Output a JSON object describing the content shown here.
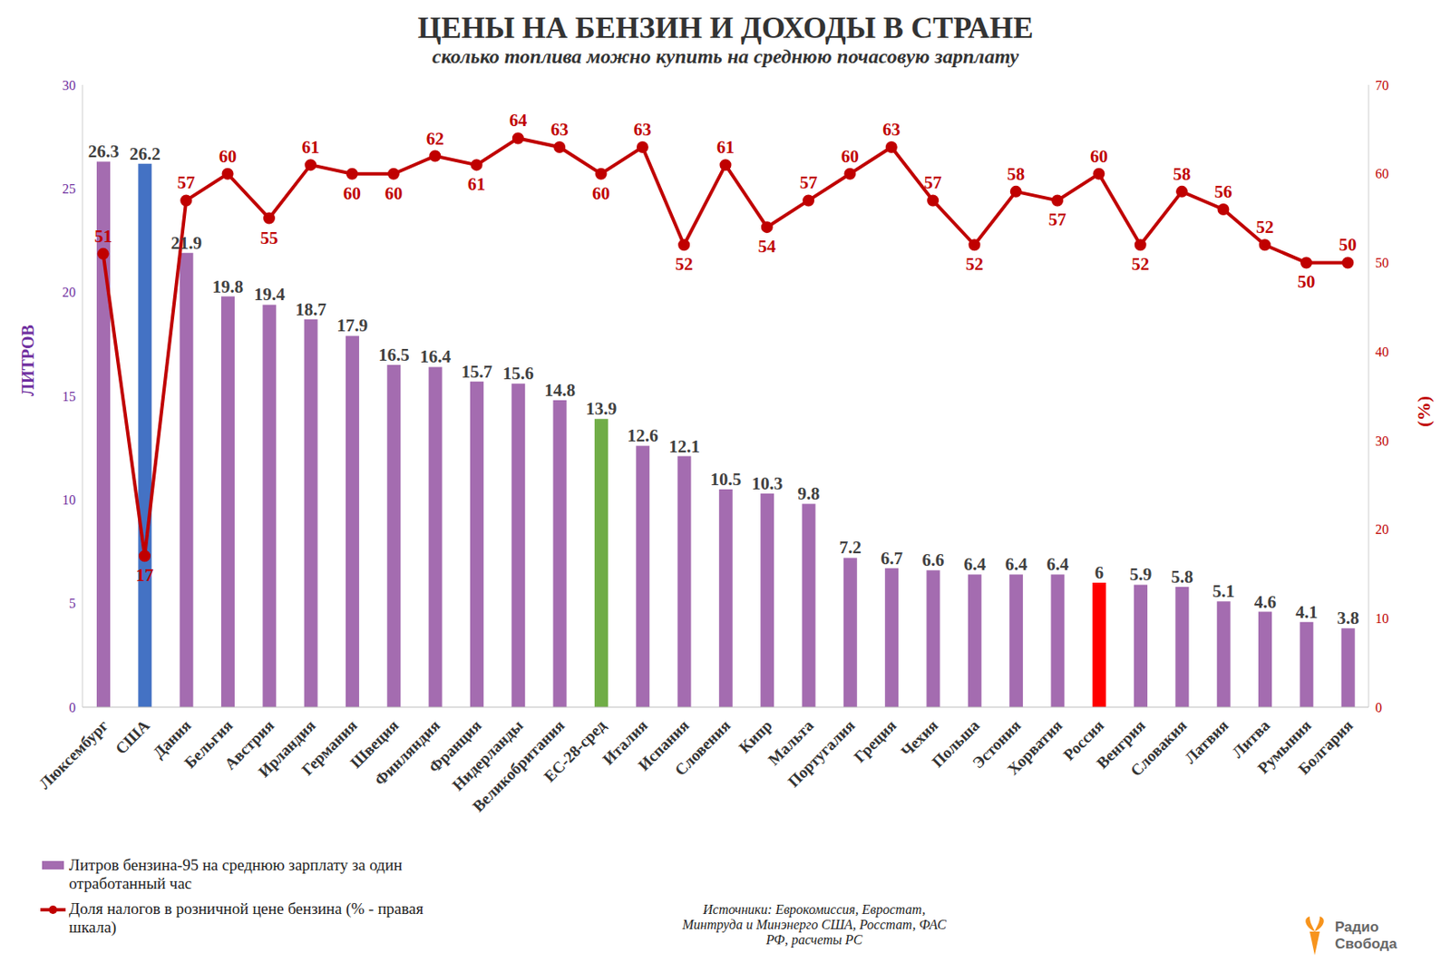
{
  "chart_data": {
    "type": "bar",
    "title": "ЦЕНЫ НА БЕНЗИН И ДОХОДЫ В СТРАНЕ",
    "subtitle": "сколько топлива можно купить на среднюю почасовую зарплату",
    "y_label": "ЛИТРОВ",
    "y2_label": "(%)",
    "categories": [
      "Люксембург",
      "США",
      "Дания",
      "Бельгия",
      "Австрия",
      "Ирландия",
      "Германия",
      "Швеция",
      "Финляндия",
      "Франция",
      "Нидерланды",
      "Великобритания",
      "ЕС-28-сред",
      "Италия",
      "Испания",
      "Словения",
      "Кипр",
      "Мальта",
      "Португалия",
      "Греция",
      "Чехия",
      "Польша",
      "Эстония",
      "Хорватия",
      "Россия",
      "Венгрия",
      "Словакия",
      "Латвия",
      "Литва",
      "Румыния",
      "Болгария"
    ],
    "series": [
      {
        "name": "Литров бензина-95 на среднюю зарплату за один отработанный час",
        "type": "bar",
        "color": "#a46cb0",
        "colors": [
          "#a46cb0",
          "#4472c4",
          "#a46cb0",
          "#a46cb0",
          "#a46cb0",
          "#a46cb0",
          "#a46cb0",
          "#a46cb0",
          "#a46cb0",
          "#a46cb0",
          "#a46cb0",
          "#a46cb0",
          "#70ad47",
          "#a46cb0",
          "#a46cb0",
          "#a46cb0",
          "#a46cb0",
          "#a46cb0",
          "#a46cb0",
          "#a46cb0",
          "#a46cb0",
          "#a46cb0",
          "#a46cb0",
          "#a46cb0",
          "#ff0000",
          "#a46cb0",
          "#a46cb0",
          "#a46cb0",
          "#a46cb0",
          "#a46cb0",
          "#a46cb0"
        ],
        "values": [
          26.3,
          26.2,
          21.9,
          19.8,
          19.4,
          18.7,
          17.9,
          16.5,
          16.4,
          15.7,
          15.6,
          14.8,
          13.9,
          12.6,
          12.1,
          10.5,
          10.3,
          9.8,
          7.2,
          6.7,
          6.6,
          6.4,
          6.4,
          6.4,
          6,
          5.9,
          5.8,
          5.1,
          4.6,
          4.1,
          3.8
        ]
      },
      {
        "name": "Доля налогов в розничной цене бензина (% - правая шкала)",
        "type": "line",
        "axis": "y2",
        "color": "#c00000",
        "marker": "circle",
        "values": [
          51,
          17,
          57,
          60,
          55,
          61,
          60,
          60,
          62,
          61,
          64,
          63,
          60,
          63,
          52,
          61,
          54,
          57,
          60,
          63,
          57,
          52,
          58,
          57,
          60,
          52,
          58,
          56,
          52,
          50,
          50
        ]
      }
    ],
    "ylim": [
      0,
      30
    ],
    "yticks": [
      0,
      5,
      10,
      15,
      20,
      25,
      30
    ],
    "y2lim": [
      0,
      70
    ],
    "y2ticks": [
      0,
      10,
      20,
      30,
      40,
      50,
      60,
      70
    ],
    "grid": false,
    "data_labels": true,
    "legend": "lower left",
    "annotations": [
      "Источники: Еврокомиссия, Евростат, Минтруда и Минэнерго США, Росстат, ФАС РФ, расчеты РС",
      "Радио Свобода"
    ]
  }
}
